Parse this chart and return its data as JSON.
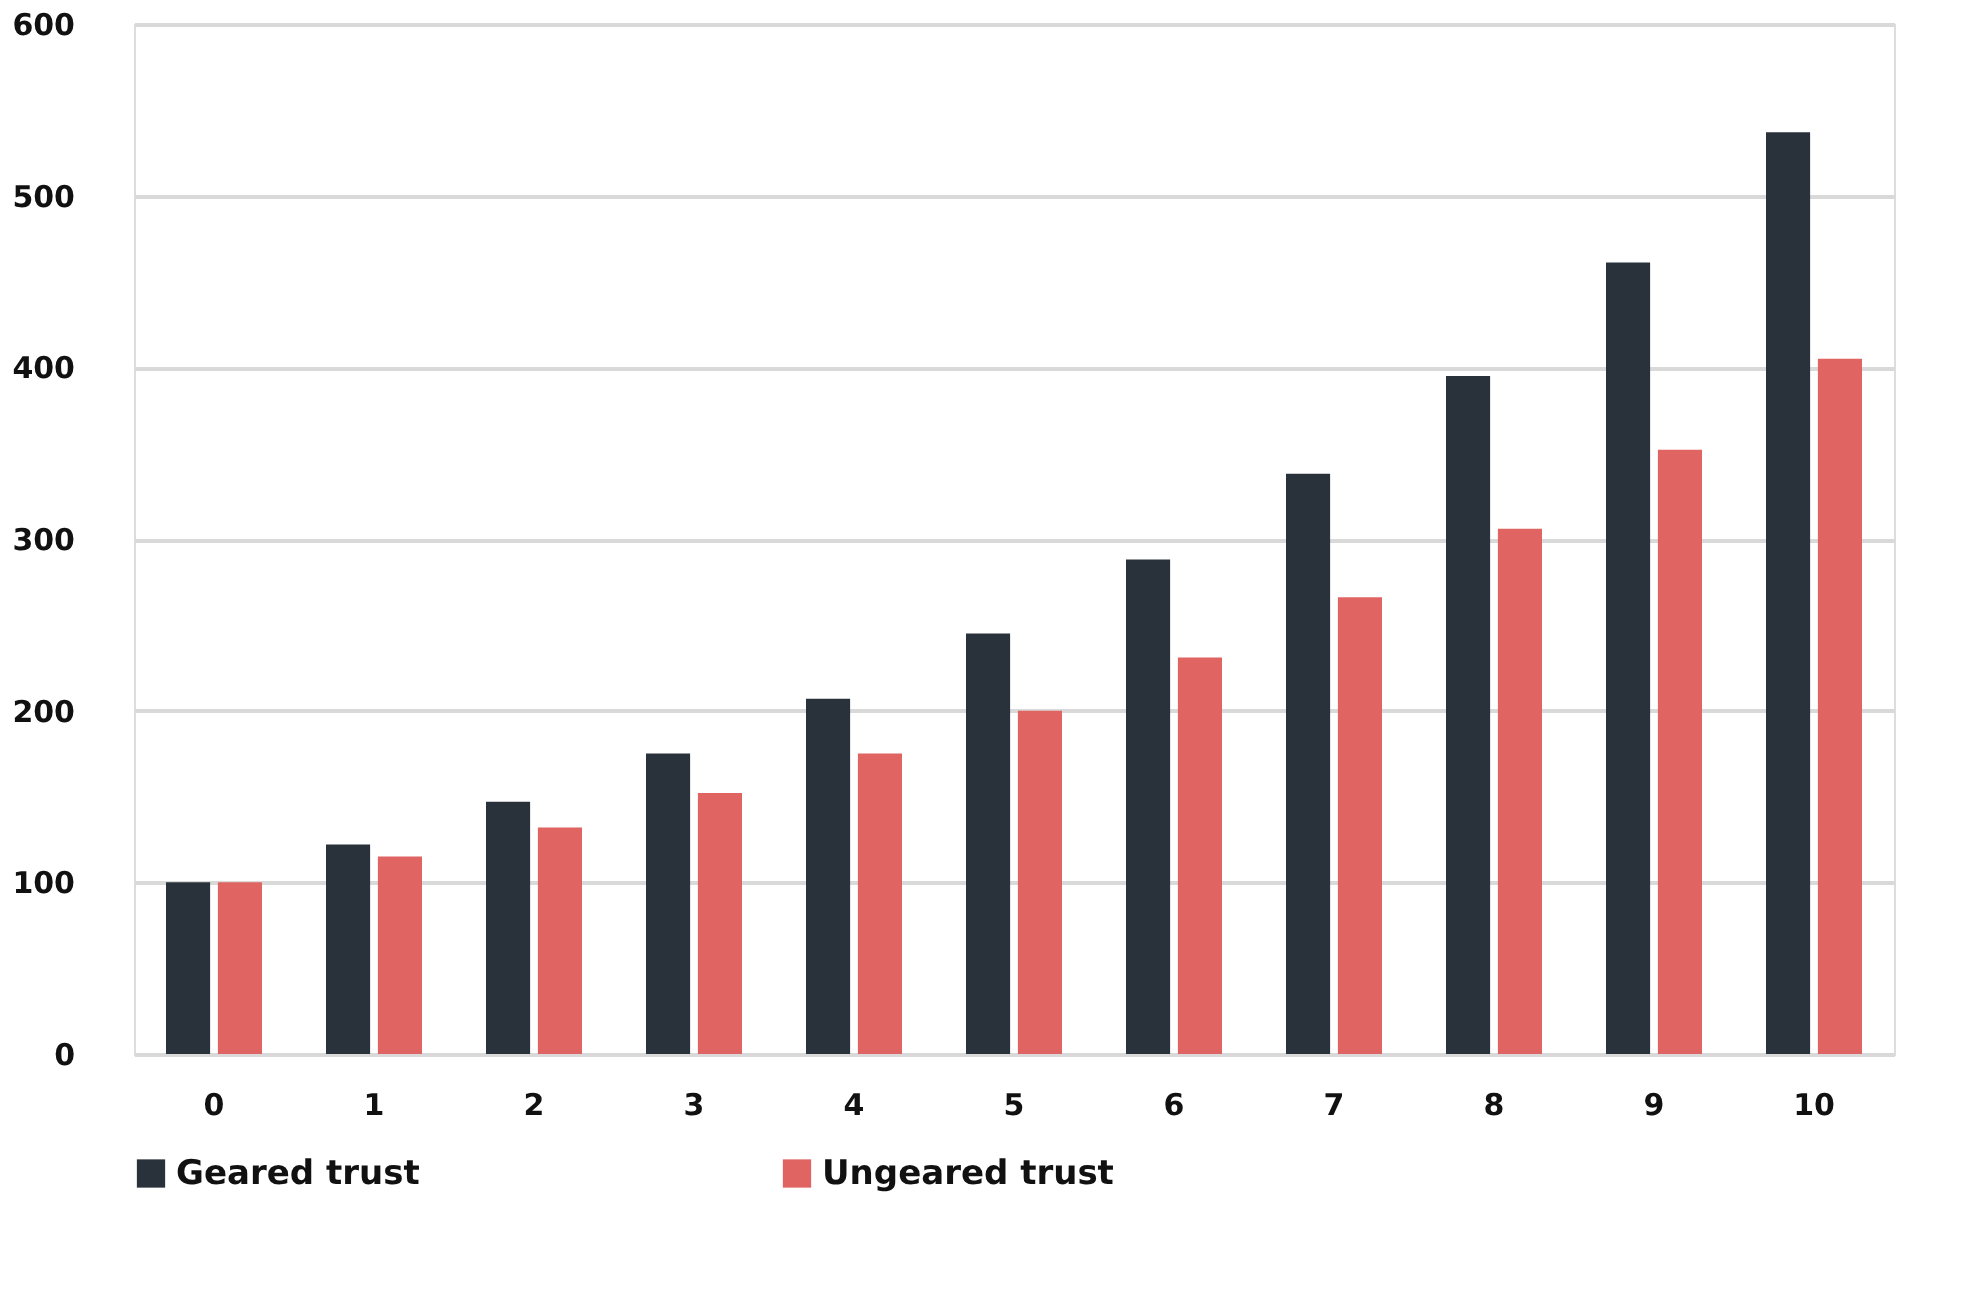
{
  "chart_data": {
    "type": "bar",
    "categories": [
      "0",
      "1",
      "2",
      "3",
      "4",
      "5",
      "6",
      "7",
      "8",
      "9",
      "10"
    ],
    "series": [
      {
        "name": "Geared trust",
        "color": "#29323b",
        "values": [
          100,
          122,
          147,
          175,
          207,
          245,
          288,
          338,
          395,
          461,
          537
        ]
      },
      {
        "name": "Ungeared trust",
        "color": "#e06461",
        "values": [
          100,
          115,
          132,
          152,
          175,
          200,
          231,
          266,
          306,
          352,
          405
        ]
      }
    ],
    "ylim": [
      0,
      600
    ],
    "yticks": [
      0,
      100,
      200,
      300,
      400,
      500,
      600
    ],
    "grid": "y",
    "legend": "bottom"
  }
}
